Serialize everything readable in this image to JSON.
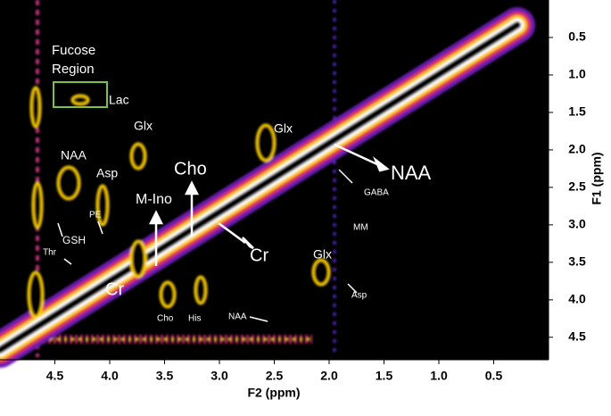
{
  "chart_data": {
    "type": "spectrum2d",
    "xlabel": "F2 (ppm)",
    "ylabel": "F1 (ppm)",
    "xlim": [
      5.0,
      0.0
    ],
    "ylim": [
      0.0,
      4.8
    ],
    "xticks": [
      4.5,
      {
        "value": 4.0,
        "label": "4.0"
      },
      3.5,
      {
        "value": 3.0,
        "label": "3.0"
      },
      2.5,
      {
        "value": 2.0,
        "label": "2.0"
      },
      1.5,
      {
        "value": 1.0,
        "label": "1.0"
      },
      0.5
    ],
    "yticks": [
      0.5,
      {
        "value": 1.0,
        "label": "1.0"
      },
      1.5,
      {
        "value": 2.0,
        "label": "2.0"
      },
      2.5,
      {
        "value": 3.0,
        "label": "3.0"
      },
      3.5,
      {
        "value": 4.0,
        "label": "4.0"
      },
      4.5
    ],
    "annotations": [
      "Fucose",
      "Region",
      "Lac",
      "Glx",
      "NAA",
      "Asp",
      "M-Ino",
      "Cho",
      "PE",
      "GSH",
      "Thr",
      "Cr",
      "Cr",
      "Glx",
      "NAA",
      "GABA",
      "MM",
      "Glx",
      "Asp",
      "NAA",
      "Cho",
      "His"
    ]
  }
}
